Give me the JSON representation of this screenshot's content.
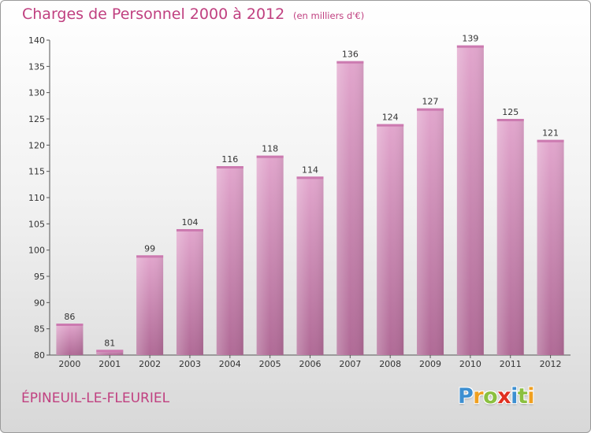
{
  "chart_data": {
    "type": "bar",
    "title": "Charges de Personnel 2000 à 2012",
    "subtitle": "(en milliers d'€)",
    "categories": [
      "2000",
      "2001",
      "2002",
      "2003",
      "2004",
      "2005",
      "2006",
      "2007",
      "2008",
      "2009",
      "2010",
      "2011",
      "2012"
    ],
    "values": [
      86,
      81,
      99,
      104,
      116,
      118,
      114,
      136,
      124,
      127,
      139,
      125,
      121
    ],
    "ylim": [
      80,
      140
    ],
    "yticks": [
      80,
      85,
      90,
      95,
      100,
      105,
      110,
      115,
      120,
      125,
      130,
      135,
      140
    ],
    "grid": false,
    "bar_color": "#d080b0"
  },
  "location": "ÉPINEUIL-LE-FLEURIEL",
  "logo": {
    "letters": [
      {
        "ch": "P",
        "color": "#3d8fd1"
      },
      {
        "ch": "r",
        "color": "#f0a020"
      },
      {
        "ch": "o",
        "color": "#8bc040"
      },
      {
        "ch": "x",
        "color": "#e03020"
      },
      {
        "ch": "i",
        "color": "#3d8fd1"
      },
      {
        "ch": "t",
        "color": "#8bc040"
      },
      {
        "ch": "i",
        "color": "#f0a020"
      }
    ]
  }
}
